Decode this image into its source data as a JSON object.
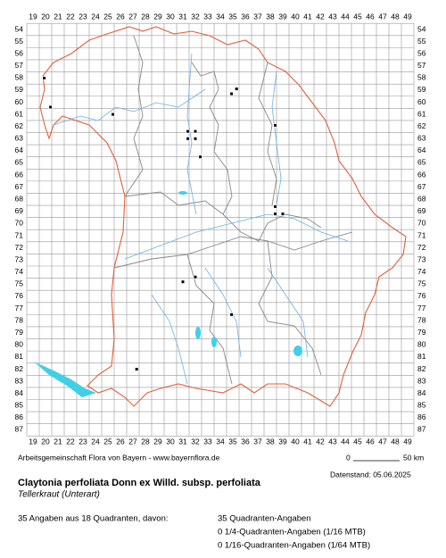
{
  "grid": {
    "columns": [
      19,
      20,
      21,
      22,
      23,
      24,
      25,
      26,
      27,
      28,
      29,
      30,
      31,
      32,
      33,
      34,
      35,
      36,
      37,
      38,
      39,
      40,
      41,
      42,
      43,
      44,
      45,
      46,
      47,
      48,
      49
    ],
    "rows": [
      54,
      55,
      56,
      57,
      58,
      59,
      60,
      61,
      62,
      63,
      64,
      65,
      66,
      67,
      68,
      69,
      70,
      71,
      72,
      73,
      74,
      75,
      76,
      77,
      78,
      79,
      80,
      81,
      82,
      83,
      84,
      85,
      86,
      87
    ]
  },
  "points": [
    {
      "x": 19.9,
      "y": 58.0
    },
    {
      "x": 20.4,
      "y": 60.4
    },
    {
      "x": 25.4,
      "y": 61.0
    },
    {
      "x": 35.3,
      "y": 58.9
    },
    {
      "x": 34.9,
      "y": 59.3
    },
    {
      "x": 38.4,
      "y": 61.9
    },
    {
      "x": 31.4,
      "y": 62.4
    },
    {
      "x": 32.0,
      "y": 62.4
    },
    {
      "x": 31.4,
      "y": 63.0
    },
    {
      "x": 32.0,
      "y": 63.0
    },
    {
      "x": 32.4,
      "y": 64.5
    },
    {
      "x": 38.4,
      "y": 68.6
    },
    {
      "x": 38.4,
      "y": 69.2
    },
    {
      "x": 39.0,
      "y": 69.2
    },
    {
      "x": 32.0,
      "y": 74.4
    },
    {
      "x": 31.0,
      "y": 74.8
    },
    {
      "x": 34.9,
      "y": 77.5
    },
    {
      "x": 27.3,
      "y": 82.0
    }
  ],
  "footer": {
    "source": "Arbeitsgemeinschaft Flora von Bayern - www.bayernflora.de",
    "scale_start": "0",
    "scale_end": "50 km",
    "date": "Datenstand: 05.06.2025",
    "title": "Claytonia perfoliata Donn ex Willd. subsp. perfoliata",
    "subtitle": "Tellerkraut (Unterart)",
    "summary": "35 Angaben aus 18 Quadranten, davon:",
    "details": [
      "35 Quadranten-Angaben",
      "0 1/4-Quadranten-Angaben (1/16 MTB)",
      "0 1/16-Quadranten-Angaben (1/64 MTB)"
    ]
  }
}
